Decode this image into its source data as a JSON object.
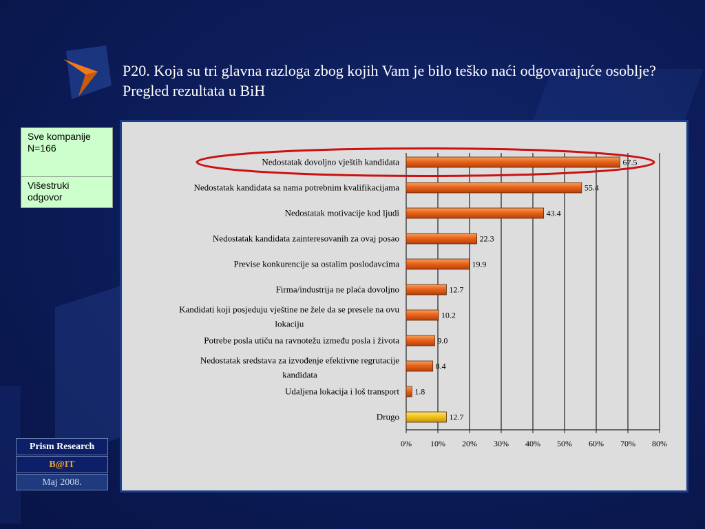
{
  "slide": {
    "title": "P20. Koja su tri glavna razloga zbog kojih Vam je bilo teško naći odgovarajuće osoblje? Pregled rezultata u BiH"
  },
  "info_box": {
    "line1": "Sve kompanije N=166",
    "line2": "Višestruki odgovor"
  },
  "footer": {
    "company": "Prism Research",
    "brand": "B@IT",
    "date": "Maj 2008."
  },
  "colors": {
    "bar": "#e8641a",
    "bar_highlight": "#f2c41a",
    "highlight_ellipse": "#cc1111",
    "frame_border": "#1b3f8a"
  },
  "chart_data": {
    "type": "bar",
    "orientation": "horizontal",
    "categories": [
      "Nedostatak dovoljno vještih kandidata",
      "Nedostatak kandidata sa nama potrebnim kvalifikacijama",
      "Nedostatak motivacije kod ljudi",
      "Nedostatak kandidata zainteresovanih za ovaj posao",
      "Previse konkurencije sa ostalim poslodavcima",
      "Firma/industrija ne plaća dovoljno",
      "Kandidati koji posjeduju vještine ne žele da se presele na ovu lokaciju",
      "Potrebe posla utiču na ravnotežu između posla i života",
      "Nedostatak sredstava za izvođenje efektivne regrutacije kandidata",
      "Udaljena lokacija i loš transport",
      "Drugo"
    ],
    "category_lines": [
      [
        "Nedostatak dovoljno vještih kandidata"
      ],
      [
        "Nedostatak kandidata sa nama potrebnim kvalifikacijama"
      ],
      [
        "Nedostatak motivacije kod ljudi"
      ],
      [
        "Nedostatak kandidata zainteresovanih za ovaj posao"
      ],
      [
        "Previse konkurencije sa ostalim poslodavcima"
      ],
      [
        "Firma/industrija ne plaća dovoljno"
      ],
      [
        "Kandidati koji posjeduju vještine ne žele da se presele na ovu",
        "lokaciju"
      ],
      [
        "Potrebe posla utiču na ravnotežu između posla i života"
      ],
      [
        "Nedostatak sredstava za izvođenje efektivne regrutacije",
        "kandidata"
      ],
      [
        "Udaljena lokacija i loš transport"
      ],
      [
        "Drugo"
      ]
    ],
    "values": [
      67.5,
      55.4,
      43.4,
      22.3,
      19.9,
      12.7,
      10.2,
      9.0,
      8.4,
      1.8,
      12.7
    ],
    "value_labels": [
      "67.5",
      "55.4",
      "43.4",
      "22.3",
      "19.9",
      "12.7",
      "10.2",
      "9.0",
      "8.4",
      "1.8",
      "12.7"
    ],
    "highlighted_index": 0,
    "yellow_index": 10,
    "xlim": [
      0,
      80
    ],
    "x_ticks": [
      0,
      10,
      20,
      30,
      40,
      50,
      60,
      70,
      80
    ],
    "x_tick_labels": [
      "0%",
      "10%",
      "20%",
      "30%",
      "40%",
      "50%",
      "60%",
      "70%",
      "80%"
    ],
    "grid": "vertical",
    "legend": "none"
  }
}
